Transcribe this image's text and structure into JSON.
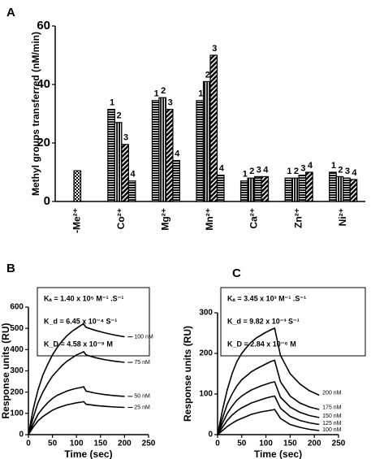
{
  "chart_data": [
    {
      "type": "bar",
      "panel": "A",
      "ylabel": "Methyl groups transferred (nM/min)",
      "categories": [
        "-Me²⁺",
        "Co²⁺",
        "Mg²⁺",
        "Mn²⁺",
        "Ca²⁺",
        "Zn²⁺",
        "Ni²⁺"
      ],
      "bar_labels": [
        "1",
        "2",
        "3",
        "4"
      ],
      "groups": [
        [
          10.5
        ],
        [
          31.5,
          27,
          19.5,
          7
        ],
        [
          34.5,
          35.5,
          31.5,
          14
        ],
        [
          34.5,
          41,
          50,
          9
        ],
        [
          7,
          8,
          8.5,
          8.5
        ],
        [
          8,
          8,
          9,
          10
        ],
        [
          10,
          8.5,
          8,
          7.5
        ]
      ],
      "ylim": [
        0,
        60
      ],
      "yticks": [
        0,
        20,
        40,
        60
      ],
      "color": "#000000"
    },
    {
      "type": "line",
      "panel": "B",
      "xlabel": "Time (sec)",
      "ylabel": "Response units (RU)",
      "annotations": [
        "Kₐ = 1.40 x 10⁵ M⁻¹ .S⁻¹",
        "K_d = 6.45 x 10⁻⁴ S⁻¹",
        "K_D = 4.58 x 10⁻⁹ M"
      ],
      "x": [
        0,
        10,
        20,
        30,
        40,
        50,
        60,
        70,
        80,
        90,
        100,
        110,
        115,
        120,
        140,
        160,
        180,
        200
      ],
      "series": [
        {
          "name": "100 nM",
          "color": "#000000",
          "values": [
            0,
            120,
            210,
            280,
            330,
            375,
            410,
            440,
            465,
            485,
            500,
            515,
            520,
            505,
            490,
            478,
            468,
            460
          ]
        },
        {
          "name": "75 nM",
          "color": "#000000",
          "values": [
            0,
            80,
            150,
            200,
            240,
            275,
            300,
            325,
            345,
            360,
            375,
            385,
            390,
            375,
            362,
            352,
            345,
            340
          ]
        },
        {
          "name": "50 nM",
          "color": "#000000",
          "values": [
            0,
            50,
            95,
            125,
            150,
            170,
            185,
            195,
            205,
            212,
            218,
            222,
            225,
            205,
            195,
            188,
            183,
            180
          ]
        },
        {
          "name": "25 nM",
          "color": "#000000",
          "values": [
            0,
            35,
            65,
            85,
            100,
            115,
            125,
            133,
            140,
            145,
            150,
            153,
            155,
            143,
            137,
            133,
            130,
            128
          ]
        }
      ],
      "xlim": [
        0,
        250
      ],
      "xticks": [
        0,
        50,
        100,
        150,
        200,
        250
      ],
      "ylim": [
        0,
        600
      ],
      "yticks": [
        0,
        100,
        200,
        300,
        400,
        500,
        600
      ]
    },
    {
      "type": "line",
      "panel": "C",
      "xlabel": "Time (sec)",
      "ylabel": "Response units (RU)",
      "annotations": [
        "Kₐ = 3.45 x 10³ M⁻¹ .S⁻¹",
        "K_d = 9.82 x 10⁻³ S⁻¹",
        "K_D = 2.84 x 10⁻⁶ M"
      ],
      "x": [
        0,
        10,
        20,
        30,
        40,
        50,
        60,
        70,
        80,
        90,
        100,
        110,
        118,
        130,
        150,
        170,
        190,
        210
      ],
      "series": [
        {
          "name": "200 nM",
          "color": "#000000",
          "values": [
            0,
            60,
            110,
            150,
            180,
            200,
            215,
            228,
            238,
            245,
            252,
            258,
            262,
            195,
            150,
            125,
            108,
            97
          ]
        },
        {
          "name": "175 nM",
          "color": "#000000",
          "values": [
            0,
            40,
            75,
            100,
            120,
            135,
            145,
            155,
            162,
            168,
            174,
            180,
            183,
            130,
            95,
            78,
            68,
            62
          ]
        },
        {
          "name": "150 nM",
          "color": "#000000",
          "values": [
            0,
            28,
            52,
            70,
            85,
            95,
            103,
            110,
            115,
            120,
            124,
            128,
            130,
            92,
            68,
            55,
            47,
            42
          ]
        },
        {
          "name": "125 nM",
          "color": "#000000",
          "values": [
            0,
            18,
            35,
            48,
            58,
            66,
            72,
            78,
            82,
            86,
            90,
            93,
            95,
            65,
            45,
            35,
            29,
            25
          ]
        },
        {
          "name": "100 nM",
          "color": "#000000",
          "values": [
            0,
            10,
            20,
            28,
            35,
            40,
            45,
            50,
            53,
            56,
            58,
            60,
            62,
            40,
            25,
            18,
            13,
            10
          ]
        }
      ],
      "xlim": [
        0,
        250
      ],
      "xticks": [
        0,
        50,
        100,
        150,
        200,
        250
      ],
      "ylim": [
        0,
        300
      ],
      "yticks": [
        0,
        100,
        200,
        300
      ]
    }
  ]
}
